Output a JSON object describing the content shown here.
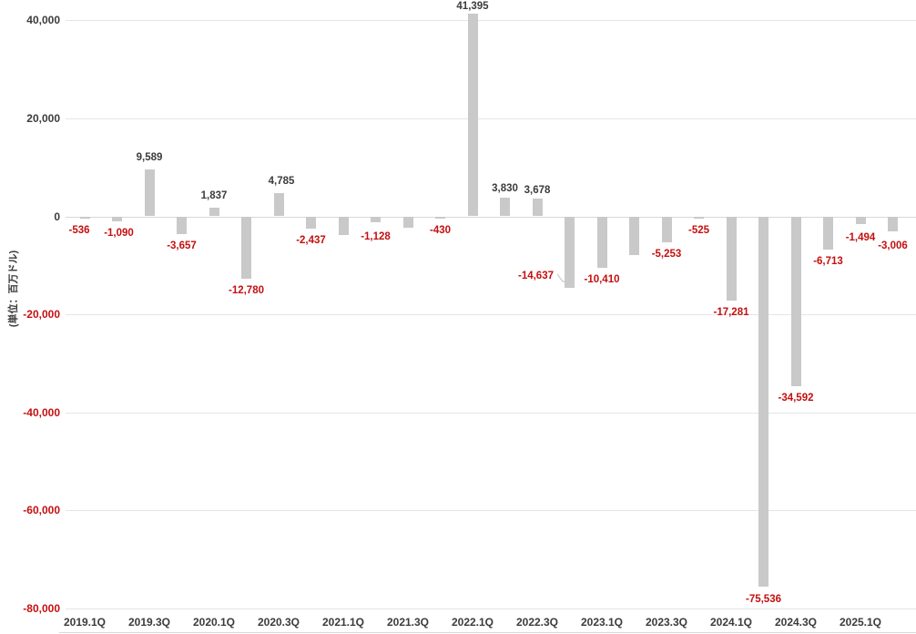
{
  "chart_data": {
    "type": "bar",
    "title": "",
    "unit_label": "(単位：百万ドル)",
    "xlabel": "",
    "ylabel": "(単位：百万ドル)",
    "ylim": [
      -80000,
      44000
    ],
    "grid": true,
    "legend": false,
    "bar_color": "#c9c9c9",
    "positive_text_color": "#3b3b3b",
    "negative_text_color": "#c40f0f",
    "gridline_color": "#e5e5e5",
    "y_ticks": [
      {
        "value": 40000,
        "label": "40,000"
      },
      {
        "value": 20000,
        "label": "20,000"
      },
      {
        "value": 0,
        "label": "0"
      },
      {
        "value": -20000,
        "label": "-20,000"
      },
      {
        "value": -40000,
        "label": "-40,000"
      },
      {
        "value": -60000,
        "label": "-60,000"
      },
      {
        "value": -80000,
        "label": "-80,000"
      }
    ],
    "x_tick_labels": [
      "2019.1Q",
      "2019.3Q",
      "2020.1Q",
      "2020.3Q",
      "2021.1Q",
      "2021.3Q",
      "2022.1Q",
      "2022.3Q",
      "2023.1Q",
      "2023.3Q",
      "2024.1Q",
      "2024.3Q",
      "2025.1Q"
    ],
    "points": [
      {
        "category": "2019.1Q",
        "value": -536,
        "label": "-536",
        "label_dx": -6
      },
      {
        "category": "2019.2Q",
        "value": -1090,
        "label": "-1,090",
        "label_dx": 2
      },
      {
        "category": "2019.3Q",
        "value": 9589,
        "label": "9,589"
      },
      {
        "category": "2019.4Q",
        "value": -3657,
        "label": "-3,657"
      },
      {
        "category": "2020.1Q",
        "value": 1837,
        "label": "1,837"
      },
      {
        "category": "2020.2Q",
        "value": -12780,
        "label": "-12,780"
      },
      {
        "category": "2020.3Q",
        "value": 4785,
        "label": "4,785",
        "label_dx": 3
      },
      {
        "category": "2020.4Q",
        "value": -2437,
        "label": "-2,437"
      },
      {
        "category": "2021.1Q",
        "value": -3900,
        "label": null,
        "estimated": true
      },
      {
        "category": "2021.2Q",
        "value": -1128,
        "label": "-1,128",
        "label_dy": 3
      },
      {
        "category": "2021.3Q",
        "value": -2300,
        "label": null,
        "estimated": true
      },
      {
        "category": "2021.4Q",
        "value": -430,
        "label": "-430"
      },
      {
        "category": "2022.1Q",
        "value": 41395,
        "label": "41,395",
        "label_dy": 5
      },
      {
        "category": "2022.2Q",
        "value": 3830,
        "label": "3,830",
        "label_dy": 3
      },
      {
        "category": "2022.3Q",
        "value": 3678,
        "label": "3,678",
        "label_dy": 4
      },
      {
        "category": "2022.4Q",
        "value": -14637,
        "label": "-14,637",
        "label_dx": -37,
        "label_dy": -26,
        "leader_line": true
      },
      {
        "category": "2023.1Q",
        "value": -10410,
        "label": "-10,410"
      },
      {
        "category": "2023.2Q",
        "value": -7900,
        "label": null,
        "estimated": true
      },
      {
        "category": "2023.3Q",
        "value": -5253,
        "label": "-5,253"
      },
      {
        "category": "2023.4Q",
        "value": -525,
        "label": "-525"
      },
      {
        "category": "2024.1Q",
        "value": -17281,
        "label": "-17,281"
      },
      {
        "category": "2024.2Q",
        "value": -75536,
        "label": "-75,536",
        "label_dy": 1
      },
      {
        "category": "2024.3Q",
        "value": -34592,
        "label": "-34,592"
      },
      {
        "category": "2024.4Q",
        "value": -6713,
        "label": "-6,713"
      },
      {
        "category": "2025.1Q",
        "value": -1494,
        "label": "-1,494",
        "label_dy": 2
      },
      {
        "category": "2025.2Q",
        "value": -3006,
        "label": "-3,006",
        "label_dy": 3
      }
    ]
  }
}
